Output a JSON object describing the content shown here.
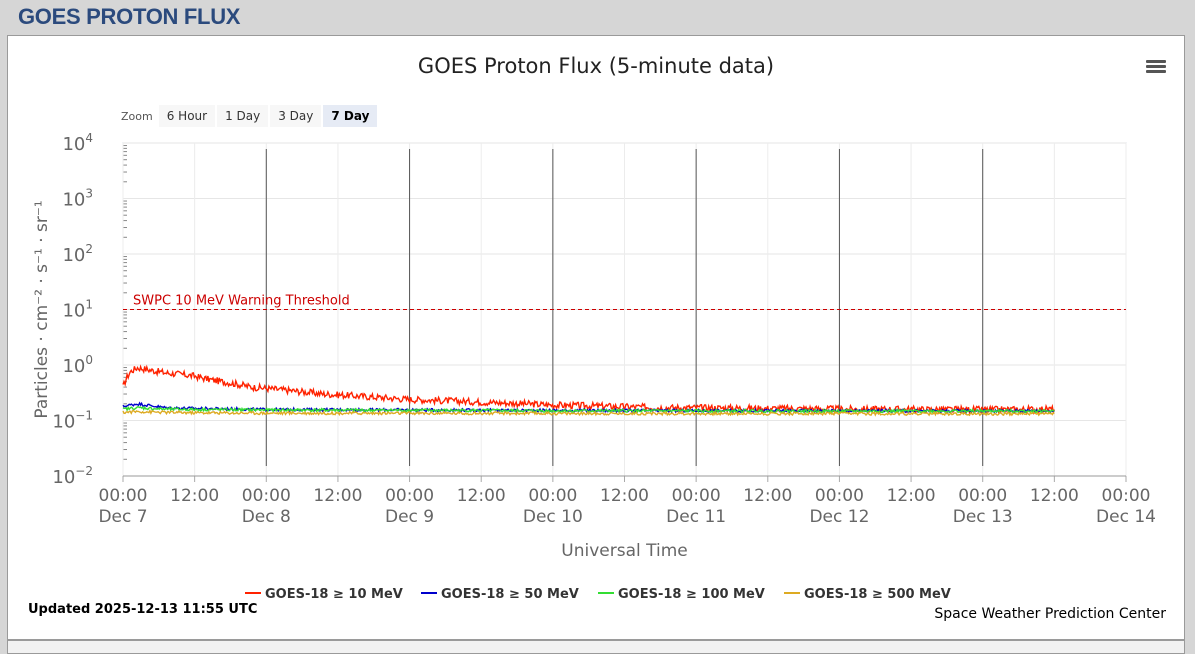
{
  "page": {
    "header": "GOES PROTON FLUX"
  },
  "chart": {
    "menu_icon": "hamburger-menu-icon",
    "zoom_label": "Zoom",
    "zoom_buttons": [
      "6 Hour",
      "1 Day",
      "3 Day",
      "7 Day"
    ],
    "zoom_selected": "7 Day",
    "updated": "Updated 2025-12-13 11:55 UTC",
    "credit": "Space Weather Prediction Center"
  },
  "chart_data": {
    "type": "line",
    "title": "GOES Proton Flux (5-minute data)",
    "xlabel": "Universal Time",
    "ylabel": "Particles · cm⁻² · s⁻¹ · sr⁻¹",
    "y_scale": "log",
    "ylim": [
      0.01,
      10000
    ],
    "xlim_days": [
      7,
      14
    ],
    "x_ticks": [
      {
        "time": "00:00",
        "date": "Dec 7"
      },
      {
        "time": "12:00",
        "date": ""
      },
      {
        "time": "00:00",
        "date": "Dec 8"
      },
      {
        "time": "12:00",
        "date": ""
      },
      {
        "time": "00:00",
        "date": "Dec 9"
      },
      {
        "time": "12:00",
        "date": ""
      },
      {
        "time": "00:00",
        "date": "Dec 10"
      },
      {
        "time": "12:00",
        "date": ""
      },
      {
        "time": "00:00",
        "date": "Dec 11"
      },
      {
        "time": "12:00",
        "date": ""
      },
      {
        "time": "00:00",
        "date": "Dec 12"
      },
      {
        "time": "12:00",
        "date": ""
      },
      {
        "time": "00:00",
        "date": "Dec 13"
      },
      {
        "time": "12:00",
        "date": ""
      },
      {
        "time": "00:00",
        "date": "Dec 14"
      }
    ],
    "y_ticks": [
      {
        "base": "10",
        "exp": "4"
      },
      {
        "base": "10",
        "exp": "3"
      },
      {
        "base": "10",
        "exp": "2"
      },
      {
        "base": "10",
        "exp": "1"
      },
      {
        "base": "10",
        "exp": "0"
      },
      {
        "base": "10",
        "exp": "−1"
      },
      {
        "base": "10",
        "exp": "−2"
      }
    ],
    "grid": true,
    "day_boundaries": [
      8,
      9,
      10,
      11,
      12,
      13
    ],
    "threshold": {
      "label": "SWPC 10 MeV Warning Threshold",
      "value": 10,
      "color": "#cc0000"
    },
    "legend_position": "bottom",
    "series": [
      {
        "name": "GOES-18 ≥ 10 MeV",
        "color": "#ff2200",
        "x": [
          7.0,
          7.02,
          7.05,
          7.1,
          7.15,
          7.2,
          7.3,
          7.4,
          7.5,
          7.6,
          7.7,
          7.8,
          7.9,
          8.0,
          8.2,
          8.4,
          8.6,
          8.8,
          9.0,
          9.2,
          9.4,
          9.6,
          9.8,
          10.0,
          10.2,
          10.4,
          10.6,
          10.8,
          11.0,
          11.2,
          11.5,
          11.8,
          12.0,
          12.3,
          12.6,
          12.9,
          13.0,
          13.2,
          13.5
        ],
        "y": [
          0.4,
          0.55,
          0.75,
          0.9,
          0.85,
          0.8,
          0.72,
          0.68,
          0.63,
          0.55,
          0.5,
          0.45,
          0.4,
          0.38,
          0.34,
          0.3,
          0.28,
          0.26,
          0.24,
          0.23,
          0.22,
          0.21,
          0.2,
          0.19,
          0.185,
          0.18,
          0.175,
          0.17,
          0.17,
          0.168,
          0.165,
          0.163,
          0.16,
          0.16,
          0.158,
          0.157,
          0.156,
          0.158,
          0.16
        ]
      },
      {
        "name": "GOES-18 ≥ 50 MeV",
        "color": "#0000cc",
        "x": [
          7.0,
          7.1,
          7.3,
          7.5,
          8.0,
          9.0,
          10.0,
          11.0,
          12.0,
          13.0,
          13.5
        ],
        "y": [
          0.18,
          0.2,
          0.17,
          0.165,
          0.158,
          0.155,
          0.152,
          0.15,
          0.15,
          0.149,
          0.15
        ]
      },
      {
        "name": "GOES-18 ≥ 100 MeV",
        "color": "#33dd33",
        "x": [
          7.0,
          7.1,
          7.3,
          7.5,
          8.0,
          9.0,
          10.0,
          11.0,
          12.0,
          13.0,
          13.5
        ],
        "y": [
          0.16,
          0.17,
          0.16,
          0.158,
          0.155,
          0.153,
          0.15,
          0.149,
          0.148,
          0.148,
          0.149
        ]
      },
      {
        "name": "GOES-18 ≥ 500 MeV",
        "color": "#ddaa22",
        "x": [
          7.0,
          7.1,
          7.3,
          7.5,
          8.0,
          9.0,
          10.0,
          11.0,
          12.0,
          13.0,
          13.5
        ],
        "y": [
          0.14,
          0.145,
          0.14,
          0.138,
          0.136,
          0.135,
          0.134,
          0.133,
          0.133,
          0.132,
          0.133
        ]
      }
    ]
  }
}
